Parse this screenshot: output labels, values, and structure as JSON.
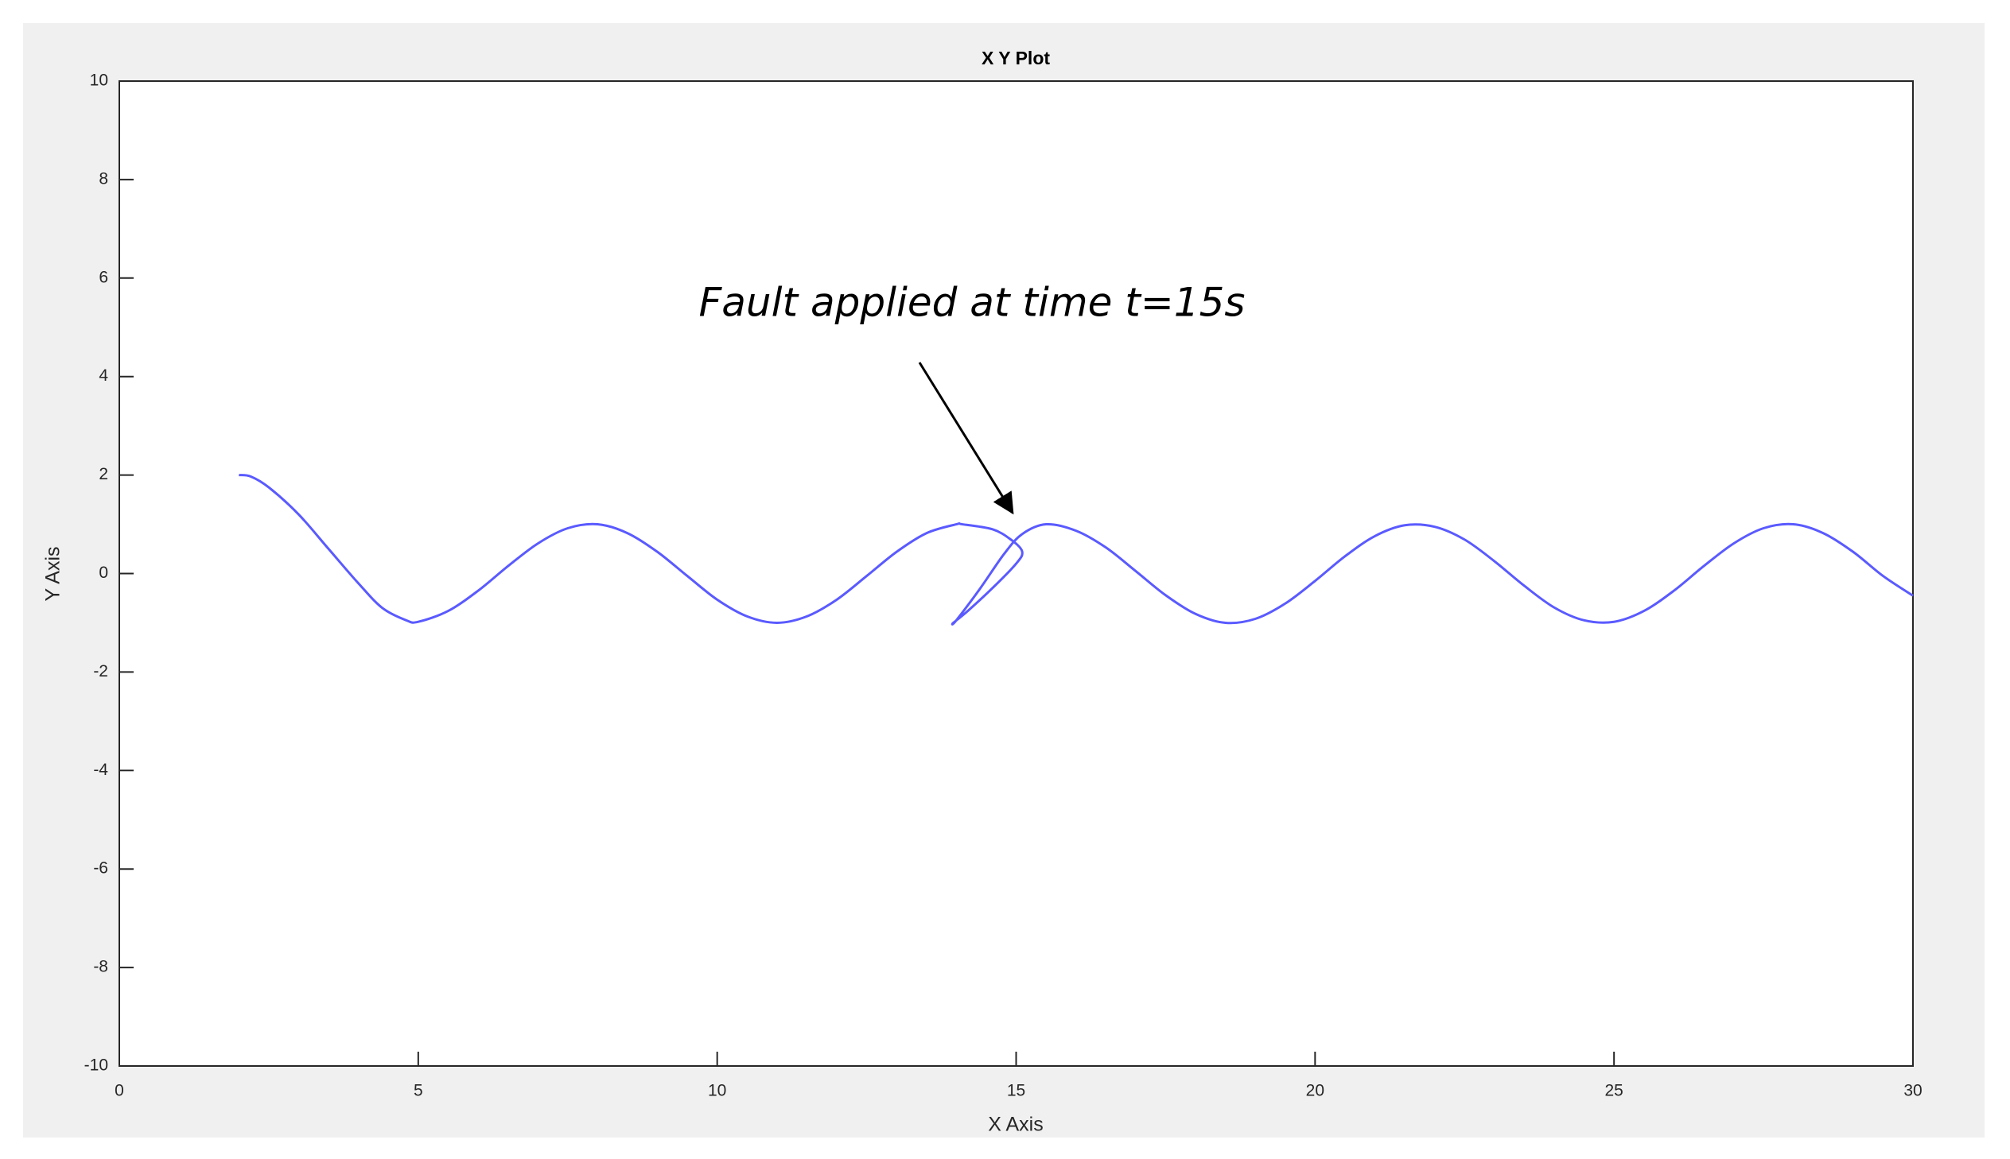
{
  "chart_data": {
    "type": "line",
    "title": "X Y Plot",
    "xlabel": "X Axis",
    "ylabel": "Y Axis",
    "annotation": "Fault applied at time t=15s",
    "x": [
      2,
      2.2,
      2.5,
      3,
      3.5,
      4,
      4.4,
      4.8,
      5,
      5.5,
      6,
      6.5,
      7,
      7.5,
      8,
      8.5,
      9,
      9.5,
      10,
      10.5,
      11,
      11.5,
      12,
      12.5,
      13,
      13.5,
      14,
      14.1,
      14.6,
      14.9,
      15.1,
      15.0,
      14.6,
      14.2,
      13.95,
      14.0,
      14.4,
      14.8,
      15.1,
      15.5,
      16,
      16.5,
      17,
      17.5,
      18,
      18.5,
      19,
      19.5,
      20,
      20.5,
      21,
      21.5,
      22,
      22.5,
      23,
      23.5,
      24,
      24.5,
      25,
      25.5,
      26,
      26.5,
      27,
      27.5,
      28,
      28.5,
      29,
      29.5,
      30
    ],
    "values": [
      2,
      1.97,
      1.75,
      1.2,
      0.5,
      -0.2,
      -0.7,
      -0.95,
      -0.98,
      -0.76,
      -0.35,
      0.15,
      0.61,
      0.92,
      1.0,
      0.82,
      0.44,
      -0.05,
      -0.53,
      -0.87,
      -1.0,
      -0.87,
      -0.53,
      -0.05,
      0.44,
      0.82,
      1.0,
      1.0,
      0.9,
      0.7,
      0.45,
      0.2,
      -0.3,
      -0.75,
      -1.0,
      -0.95,
      -0.3,
      0.4,
      0.8,
      1.0,
      0.87,
      0.53,
      0.05,
      -0.44,
      -0.82,
      -1.0,
      -0.92,
      -0.61,
      -0.15,
      0.35,
      0.76,
      0.98,
      0.95,
      0.69,
      0.25,
      -0.25,
      -0.69,
      -0.95,
      -0.98,
      -0.76,
      -0.35,
      0.15,
      0.61,
      0.92,
      1.0,
      0.82,
      0.44,
      -0.05,
      -0.45
    ],
    "color": "#5a5aff",
    "xlim": [
      0,
      30
    ],
    "xticks": [
      0,
      5,
      10,
      15,
      20,
      25,
      30
    ],
    "ylim": [
      -10,
      10
    ],
    "yticks": [
      -10,
      -8,
      -6,
      -4,
      -2,
      0,
      2,
      4,
      6,
      8,
      10
    ],
    "grid": false
  }
}
